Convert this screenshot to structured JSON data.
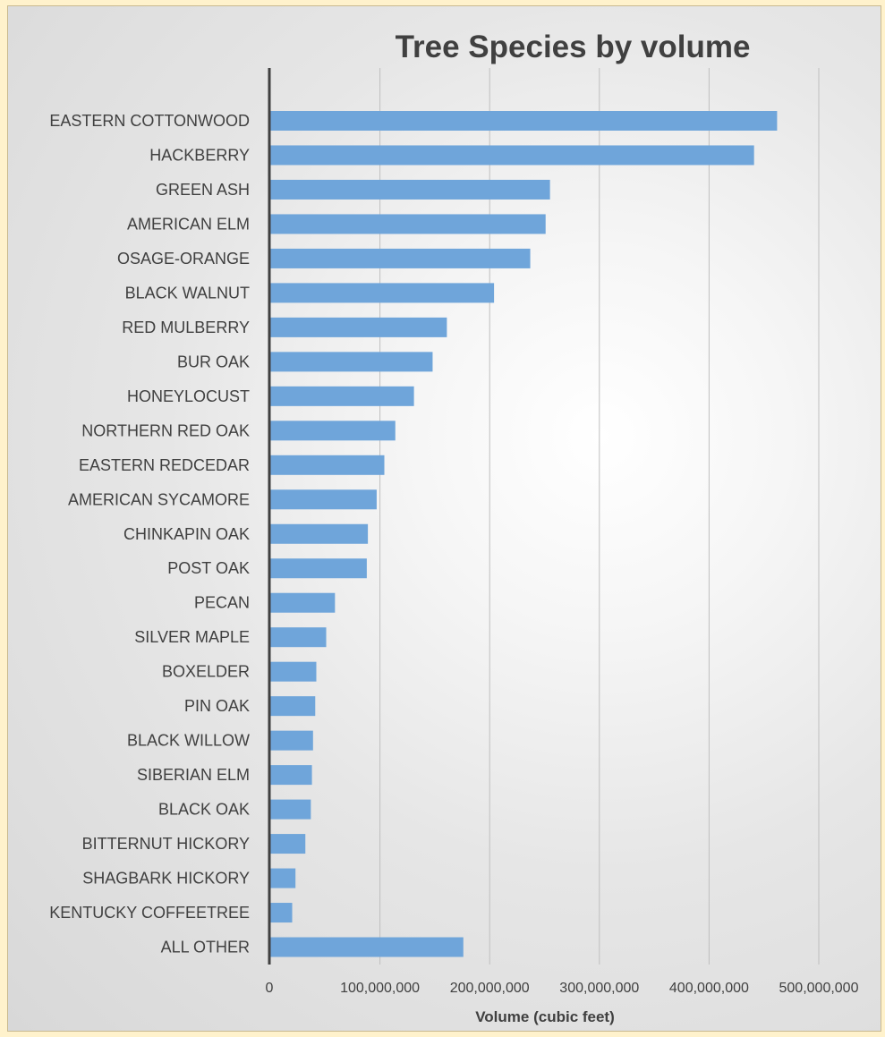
{
  "chart_data": {
    "type": "bar",
    "orientation": "horizontal",
    "title": "Tree Species by volume",
    "xlabel": "Volume (cubic feet)",
    "ylabel": "",
    "xlim": [
      0,
      500000000
    ],
    "xticks": [
      0,
      100000000,
      200000000,
      300000000,
      400000000,
      500000000
    ],
    "xtick_labels": [
      "0",
      "100,000,000",
      "200,000,000",
      "300,000,000",
      "400,000,000",
      "500,000,000"
    ],
    "grid": "vertical",
    "legend": "none",
    "bar_color": "#6fa5da",
    "categories": [
      "EASTERN COTTONWOOD",
      "HACKBERRY",
      "GREEN ASH",
      "AMERICAN ELM",
      "OSAGE-ORANGE",
      "BLACK WALNUT",
      "RED MULBERRY",
      "BUR OAK",
      "HONEYLOCUST",
      "NORTHERN RED OAK",
      "EASTERN REDCEDAR",
      "AMERICAN SYCAMORE",
      "CHINKAPIN OAK",
      "POST OAK",
      "PECAN",
      "SILVER MAPLE",
      "BOXELDER",
      "PIN OAK",
      "BLACK WILLOW",
      "SIBERIAN ELM",
      "BLACK OAK",
      "BITTERNUT HICKORY",
      "SHAGBARK HICKORY",
      "KENTUCKY COFFEETREE",
      "ALL OTHER"
    ],
    "values": [
      462000000,
      441000000,
      255000000,
      251000000,
      237000000,
      204000000,
      161000000,
      148000000,
      131000000,
      114000000,
      104000000,
      97000000,
      89000000,
      88000000,
      59000000,
      51000000,
      42000000,
      41000000,
      39000000,
      38000000,
      37000000,
      32000000,
      23000000,
      20000000,
      176000000
    ]
  }
}
